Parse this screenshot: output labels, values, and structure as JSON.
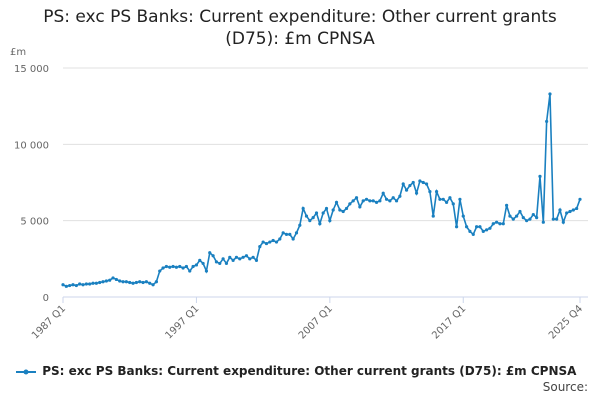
{
  "chart_data": {
    "type": "line",
    "title": "PS: exc PS Banks: Current expenditure: Other current grants (D75): £m CPNSA",
    "y_label": "£m",
    "source": "Source:",
    "categories": [
      "1987 Q1",
      null,
      null,
      null,
      null,
      null,
      null,
      null,
      null,
      null,
      null,
      null,
      null,
      null,
      null,
      null,
      null,
      null,
      null,
      null,
      null,
      null,
      null,
      null,
      null,
      null,
      null,
      null,
      null,
      null,
      null,
      null,
      null,
      null,
      null,
      null,
      null,
      null,
      null,
      null,
      "1997 Q1",
      null,
      null,
      null,
      null,
      null,
      null,
      null,
      null,
      null,
      null,
      null,
      null,
      null,
      null,
      null,
      null,
      null,
      null,
      null,
      null,
      null,
      null,
      null,
      null,
      null,
      null,
      null,
      null,
      null,
      null,
      null,
      null,
      null,
      null,
      null,
      null,
      null,
      null,
      null,
      "2007 Q1",
      null,
      null,
      null,
      null,
      null,
      null,
      null,
      null,
      null,
      null,
      null,
      null,
      null,
      null,
      null,
      null,
      null,
      null,
      null,
      null,
      null,
      null,
      null,
      null,
      null,
      null,
      null,
      null,
      null,
      null,
      null,
      null,
      null,
      null,
      null,
      null,
      null,
      null,
      null,
      "2017 Q1",
      null,
      null,
      null,
      null,
      null,
      null,
      null,
      null,
      null,
      null,
      null,
      null,
      null,
      null,
      null,
      null,
      null,
      null,
      null,
      null,
      null,
      null,
      null,
      null,
      null,
      null,
      null,
      null,
      null,
      null,
      null,
      null,
      null,
      null,
      "2025 Q4"
    ],
    "series": [
      {
        "name": "PS: exc PS Banks: Current expenditure: Other current grants (D75): £m CPNSA",
        "color": "#1a80c0",
        "values": [
          800,
          700,
          750,
          800,
          750,
          850,
          800,
          850,
          850,
          900,
          900,
          950,
          1000,
          1050,
          1100,
          1250,
          1150,
          1050,
          1000,
          1000,
          950,
          900,
          950,
          1000,
          950,
          1000,
          900,
          800,
          1000,
          1700,
          1900,
          2000,
          1950,
          2000,
          1950,
          2000,
          1900,
          2000,
          1700,
          2000,
          2100,
          2400,
          2200,
          1700,
          2900,
          2700,
          2300,
          2200,
          2500,
          2200,
          2600,
          2400,
          2600,
          2500,
          2600,
          2700,
          2500,
          2600,
          2400,
          3300,
          3600,
          3500,
          3600,
          3700,
          3600,
          3800,
          4200,
          4100,
          4100,
          3800,
          4200,
          4700,
          5800,
          5300,
          5000,
          5200,
          5500,
          4800,
          5500,
          5800,
          5000,
          5700,
          6200,
          5700,
          5600,
          5800,
          6100,
          6300,
          6500,
          5900,
          6300,
          6400,
          6300,
          6300,
          6200,
          6300,
          6800,
          6400,
          6300,
          6500,
          6300,
          6600,
          7400,
          7000,
          7300,
          7500,
          6800,
          7600,
          7500,
          7400,
          6900,
          5300,
          6900,
          6400,
          6400,
          6200,
          6500,
          6100,
          4600,
          6400,
          5300,
          4600,
          4300,
          4100,
          4600,
          4600,
          4300,
          4400,
          4500,
          4800,
          4900,
          4800,
          4800,
          6000,
          5300,
          5100,
          5300,
          5600,
          5200,
          5000,
          5100,
          5400,
          5200,
          7900,
          4900,
          11500,
          13300,
          5100,
          5100,
          5700,
          4900,
          5500,
          5600,
          5700,
          5800,
          6400
        ]
      }
    ],
    "ylim": [
      0,
      15000
    ],
    "yticks": [
      0,
      {
        "value": 5000,
        "label": "5 000"
      },
      {
        "value": 10000,
        "label": "10 000"
      },
      {
        "value": 15000,
        "label": "15 000"
      }
    ],
    "grid": true
  }
}
